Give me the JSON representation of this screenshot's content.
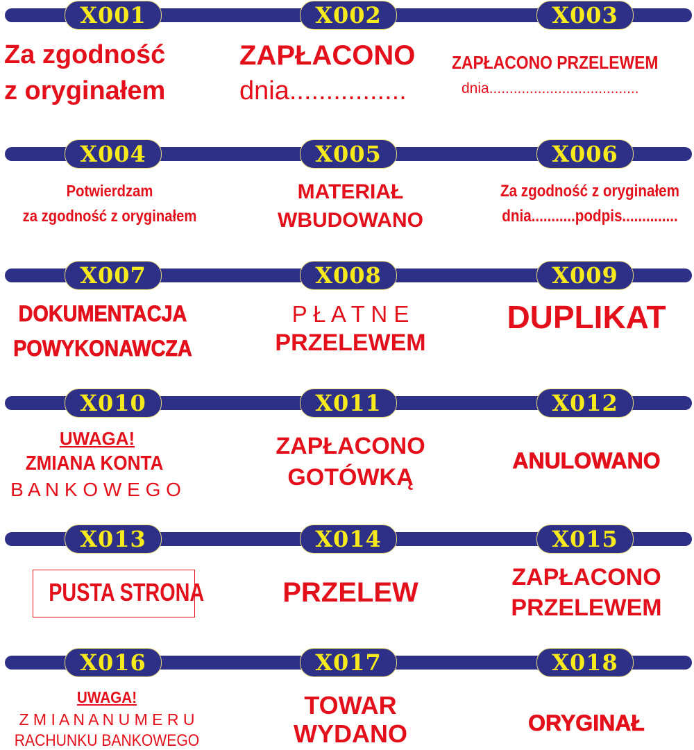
{
  "colors": {
    "bar": "#2e2f86",
    "code": "#f7ea1c",
    "stamp_text": "#e3101b"
  },
  "stamps": [
    {
      "code": "X001",
      "lines": [
        "Za zgodność",
        "z oryginałem"
      ]
    },
    {
      "code": "X002",
      "lines": [
        "ZAPŁACONO",
        "dnia................"
      ]
    },
    {
      "code": "X003",
      "lines": [
        "ZAPŁACONO PRZELEWEM",
        "dnia....................................."
      ]
    },
    {
      "code": "X004",
      "lines": [
        "Potwierdzam",
        "za zgodność z oryginałem"
      ]
    },
    {
      "code": "X005",
      "lines": [
        "MATERIAŁ",
        "WBUDOWANO"
      ]
    },
    {
      "code": "X006",
      "lines": [
        "Za zgodność z oryginałem",
        "dnia...........podpis.............."
      ]
    },
    {
      "code": "X007",
      "lines": [
        "DOKUMENTACJA",
        "POWYKONAWCZA"
      ]
    },
    {
      "code": "X008",
      "lines": [
        "P Ł A T N E",
        "PRZELEWEM"
      ]
    },
    {
      "code": "X009",
      "lines": [
        "DUPLIKAT"
      ]
    },
    {
      "code": "X010",
      "lines": [
        "UWAGA!",
        "ZMIANA KONTA",
        "B A N K O W E G O"
      ]
    },
    {
      "code": "X011",
      "lines": [
        "ZAPŁACONO",
        "GOTÓWKĄ"
      ]
    },
    {
      "code": "X012",
      "lines": [
        "ANULOWANO"
      ]
    },
    {
      "code": "X013",
      "lines": [
        "PUSTA STRONA"
      ]
    },
    {
      "code": "X014",
      "lines": [
        "PRZELEW"
      ]
    },
    {
      "code": "X015",
      "lines": [
        "ZAPŁACONO",
        "PRZELEWEM"
      ]
    },
    {
      "code": "X016",
      "lines": [
        "UWAGA!",
        "Z M I A N A N U M E R U",
        "RACHUNKU BANKOWEGO"
      ]
    },
    {
      "code": "X017",
      "lines": [
        "TOWAR",
        "WYDANO"
      ]
    },
    {
      "code": "X018",
      "lines": [
        "ORYGINAŁ"
      ]
    }
  ]
}
